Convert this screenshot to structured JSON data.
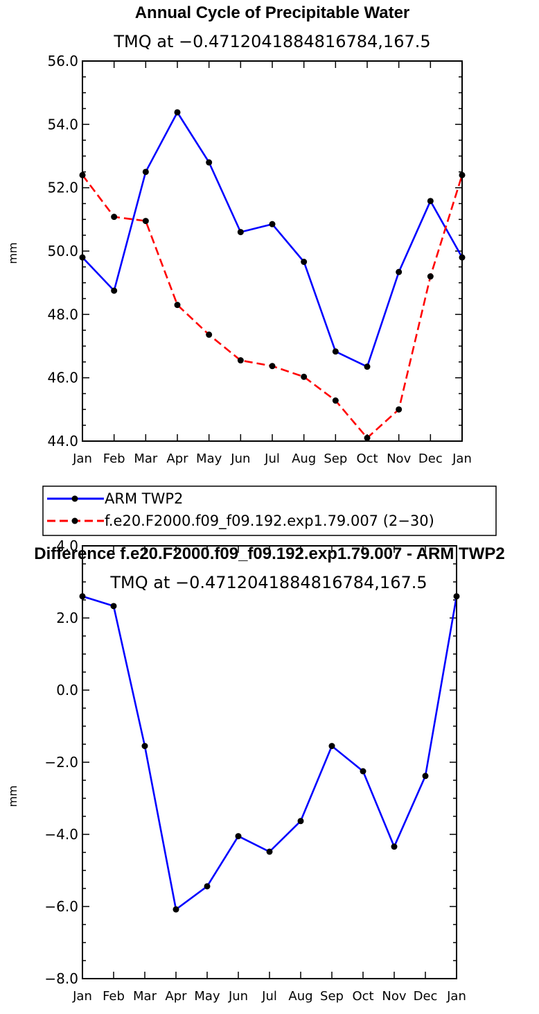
{
  "chart_data": [
    {
      "type": "line",
      "title": "Annual Cycle of Precipitable Water",
      "subtitle": "TMQ at −0.4712041884816784,167.5",
      "ylabel": "mm",
      "xlabel": "",
      "ylim": [
        44.0,
        56.0
      ],
      "yticks": [
        "44.0",
        "46.0",
        "48.0",
        "50.0",
        "52.0",
        "54.0",
        "56.0"
      ],
      "categories": [
        "Jan",
        "Feb",
        "Mar",
        "Apr",
        "May",
        "Jun",
        "Jul",
        "Aug",
        "Sep",
        "Oct",
        "Nov",
        "Dec",
        "Jan"
      ],
      "series": [
        {
          "name": "ARM TWP2",
          "color": "#0000ff",
          "dash": "solid",
          "values": [
            49.8,
            48.75,
            52.5,
            54.38,
            52.8,
            50.6,
            50.85,
            49.66,
            46.83,
            46.35,
            49.34,
            51.58,
            49.8
          ]
        },
        {
          "name": "f.e20.F2000.f09_f09.192.exp1.79.007 (2−30)",
          "color": "#ff0000",
          "dash": "dashed",
          "values": [
            52.4,
            51.08,
            50.95,
            48.3,
            47.36,
            46.55,
            46.37,
            46.03,
            45.28,
            44.1,
            45.0,
            49.2,
            52.4
          ]
        }
      ],
      "legend": [
        "ARM TWP2",
        "f.e20.F2000.f09_f09.192.exp1.79.007 (2−30)"
      ]
    },
    {
      "type": "line",
      "title": "Difference f.e20.F2000.f09_f09.192.exp1.79.007 - ARM TWP2",
      "subtitle": "TMQ at −0.4712041884816784,167.5",
      "ylabel": "mm",
      "xlabel": "",
      "ylim": [
        -8.0,
        4.0
      ],
      "yticks": [
        "−8.0",
        "−6.0",
        "−4.0",
        "−2.0",
        "0.0",
        "2.0",
        "4.0"
      ],
      "categories": [
        "Jan",
        "Feb",
        "Mar",
        "Apr",
        "May",
        "Jun",
        "Jul",
        "Aug",
        "Sep",
        "Oct",
        "Nov",
        "Dec",
        "Jan"
      ],
      "series": [
        {
          "name": "Difference",
          "color": "#0000ff",
          "dash": "solid",
          "values": [
            2.6,
            2.33,
            -1.55,
            -6.08,
            -5.44,
            -4.05,
            -4.48,
            -3.63,
            -1.55,
            -2.25,
            -4.34,
            -2.38,
            2.6
          ]
        }
      ]
    }
  ]
}
